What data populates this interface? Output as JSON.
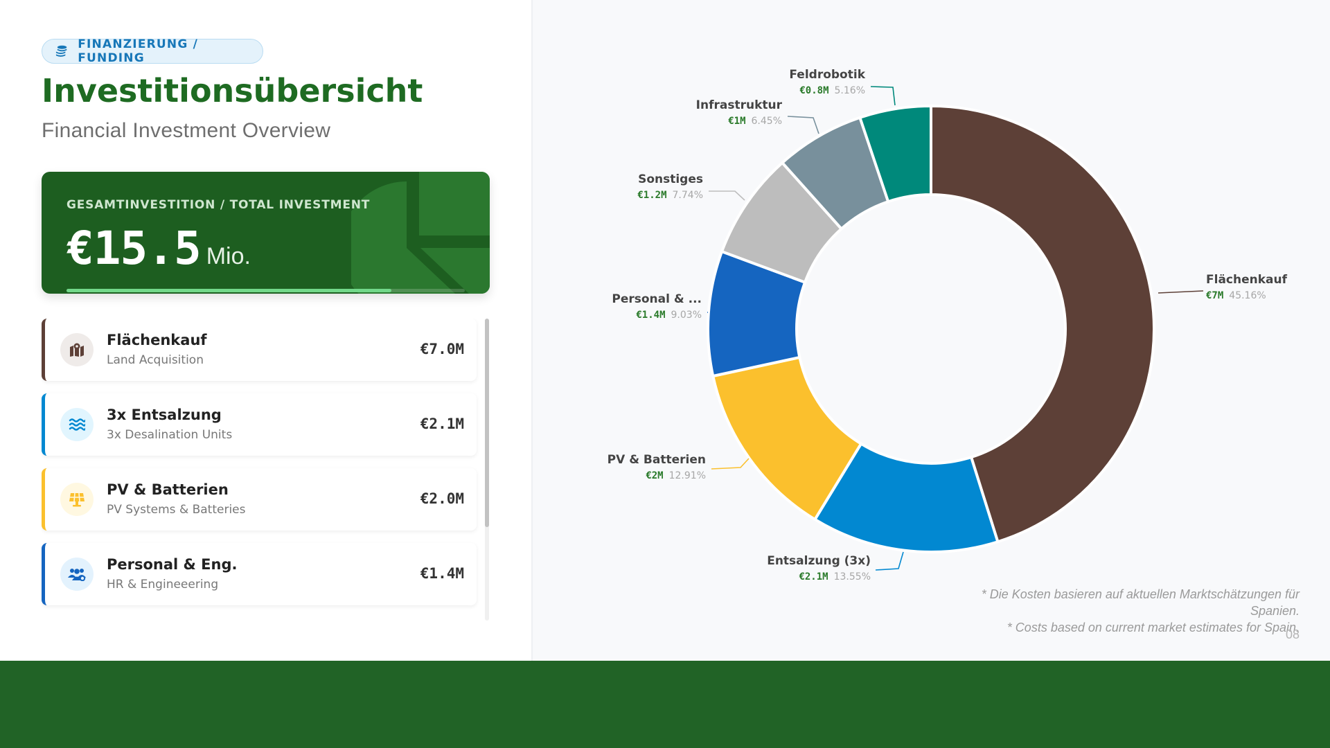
{
  "header": {
    "badge_label": "FINANZIERUNG / FUNDING",
    "title": "Investitionsübersicht",
    "subtitle": "Financial Investment Overview"
  },
  "total": {
    "label": "GESAMTINVESTITION / TOTAL INVESTMENT",
    "value": "€15.5",
    "unit": "Mio.",
    "progress_fraction": 0.815
  },
  "items": [
    {
      "title": "Flächenkauf",
      "subtitle": "Land Acquisition",
      "amount": "€7.0M",
      "icon": "map-marked-icon",
      "color": "#5d4037",
      "icon_bg": "#efebe9"
    },
    {
      "title": "3x Entsalzung",
      "subtitle": "3x Desalination Units",
      "amount": "€2.1M",
      "icon": "water-waves-icon",
      "color": "#0288d1",
      "icon_bg": "#e1f5fe"
    },
    {
      "title": "PV & Batterien",
      "subtitle": "PV Systems & Batteries",
      "amount": "€2.0M",
      "icon": "solar-panel-icon",
      "color": "#fbc02d",
      "icon_bg": "#fff8e1"
    },
    {
      "title": "Personal & Eng.",
      "subtitle": "HR & Engineeering",
      "amount": "€1.4M",
      "icon": "users-cog-icon",
      "color": "#1565c0",
      "icon_bg": "#e3f2fd"
    }
  ],
  "scrollbar_fraction": 0.69,
  "chart_data": {
    "type": "pie",
    "donut": true,
    "slices": [
      {
        "name": "Flächenkauf",
        "value_label": "€7M",
        "percent_label": "45.16%",
        "value": 7.0,
        "percent": 45.16,
        "color": "#5d4037"
      },
      {
        "name": "Entsalzung (3x)",
        "value_label": "€2.1M",
        "percent_label": "13.55%",
        "value": 2.1,
        "percent": 13.55,
        "color": "#0288d1"
      },
      {
        "name": "PV & Batterien",
        "value_label": "€2M",
        "percent_label": "12.91%",
        "value": 2.0,
        "percent": 12.91,
        "color": "#fbc02d"
      },
      {
        "name": "Personal & ...",
        "value_label": "€1.4M",
        "percent_label": "9.03%",
        "value": 1.4,
        "percent": 9.03,
        "color": "#1565c0"
      },
      {
        "name": "Sonstiges",
        "value_label": "€1.2M",
        "percent_label": "7.74%",
        "value": 1.2,
        "percent": 7.74,
        "color": "#bdbdbd"
      },
      {
        "name": "Infrastruktur",
        "value_label": "€1M",
        "percent_label": "6.45%",
        "value": 1.0,
        "percent": 6.45,
        "color": "#78909c"
      },
      {
        "name": "Feldrobotik",
        "value_label": "€0.8M",
        "percent_label": "5.16%",
        "value": 0.8,
        "percent": 5.16,
        "color": "#00897b"
      }
    ]
  },
  "footnote": {
    "line1": "* Die Kosten basieren auf aktuellen Marktschätzungen für Spanien.",
    "line2": "* Costs based on current market estimates for Spain."
  },
  "page_number": "08"
}
